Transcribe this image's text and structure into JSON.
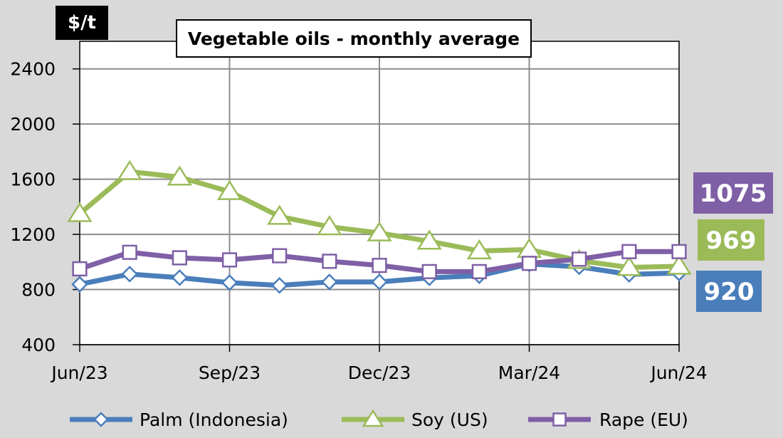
{
  "chart_data": {
    "type": "line",
    "title": "Vegetable oils - monthly average",
    "ylabel": "$/t",
    "xlabel": "",
    "ylim": [
      400,
      2600
    ],
    "yticks": [
      400,
      800,
      1200,
      1600,
      2000,
      2400
    ],
    "categories": [
      "Jun/23",
      "Jul/23",
      "Aug/23",
      "Sep/23",
      "Oct/23",
      "Nov/23",
      "Dec/23",
      "Jan/24",
      "Feb/24",
      "Mar/24",
      "Apr/24",
      "May/24",
      "Jun/24"
    ],
    "xtick_labels": [
      "Jun/23",
      "Sep/23",
      "Dec/23",
      "Mar/24",
      "Jun/24"
    ],
    "grid": true,
    "legend_position": "bottom",
    "series": [
      {
        "name": "Palm (Indonesia)",
        "color": "#4a7ebb",
        "marker": "diamond",
        "values": [
          838,
          912,
          886,
          850,
          830,
          855,
          855,
          885,
          900,
          985,
          965,
          910,
          920
        ],
        "end_label": "920"
      },
      {
        "name": "Soy (US)",
        "color": "#9bbb59",
        "marker": "triangle",
        "values": [
          1350,
          1655,
          1615,
          1510,
          1330,
          1255,
          1210,
          1150,
          1080,
          1090,
          1010,
          960,
          969
        ],
        "end_label": "969"
      },
      {
        "name": "Rape (EU)",
        "color": "#7f5fa6",
        "marker": "square",
        "values": [
          950,
          1070,
          1030,
          1015,
          1045,
          1005,
          975,
          930,
          930,
          990,
          1020,
          1075,
          1075
        ],
        "end_label": "1075"
      }
    ]
  }
}
